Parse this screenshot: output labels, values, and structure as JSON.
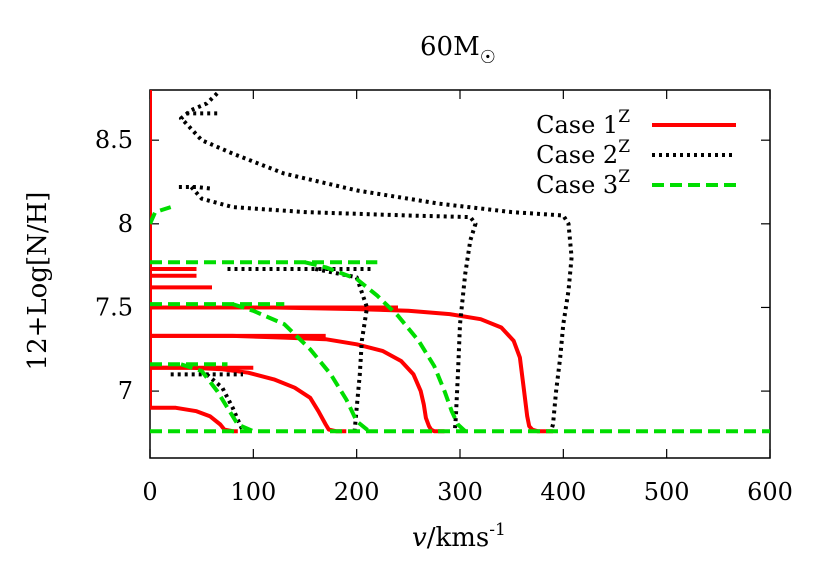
{
  "chart_data": {
    "type": "line",
    "title": "60M",
    "title_symbol": "☉",
    "xlabel": "v/kms",
    "xlabel_italic_part": "v",
    "xlabel_rest": "/kms",
    "xlabel_superscript": "-1",
    "ylabel": "12+Log[N/H]",
    "xlim": [
      0,
      600
    ],
    "ylim": [
      6.6,
      8.8
    ],
    "xticks": [
      0,
      100,
      200,
      300,
      400,
      500,
      600
    ],
    "yticks": [
      7,
      7.5,
      8,
      8.5
    ],
    "ytick_labels": [
      "7",
      "7.5",
      "8",
      "8.5"
    ],
    "legend_position": "top-right",
    "series": [
      {
        "name": "Case 1",
        "name_superscript": "Z",
        "color": "#ff0000",
        "dash": "solid",
        "segments": [
          [
            [
              0,
              8.8
            ],
            [
              0,
              6.9
            ]
          ],
          [
            [
              0,
              6.9
            ],
            [
              25,
              6.9
            ],
            [
              45,
              6.88
            ],
            [
              58,
              6.85
            ],
            [
              68,
              6.8
            ],
            [
              72,
              6.77
            ],
            [
              80,
              6.76
            ],
            [
              85,
              6.76
            ]
          ],
          [
            [
              0,
              7.14
            ],
            [
              100,
              7.14
            ]
          ],
          [
            [
              0,
              7.14
            ],
            [
              40,
              7.14
            ],
            [
              70,
              7.13
            ],
            [
              95,
              7.11
            ],
            [
              120,
              7.07
            ],
            [
              140,
              7.02
            ],
            [
              155,
              6.96
            ],
            [
              163,
              6.88
            ],
            [
              170,
              6.8
            ],
            [
              173,
              6.77
            ],
            [
              180,
              6.76
            ],
            [
              190,
              6.76
            ]
          ],
          [
            [
              0,
              7.33
            ],
            [
              170,
              7.33
            ]
          ],
          [
            [
              0,
              7.33
            ],
            [
              80,
              7.33
            ],
            [
              130,
              7.32
            ],
            [
              170,
              7.31
            ],
            [
              200,
              7.28
            ],
            [
              225,
              7.24
            ],
            [
              243,
              7.18
            ],
            [
              255,
              7.1
            ],
            [
              262,
              7.0
            ],
            [
              265,
              6.92
            ],
            [
              267,
              6.84
            ],
            [
              270,
              6.79
            ],
            [
              272,
              6.77
            ],
            [
              275,
              6.76
            ],
            [
              285,
              6.76
            ]
          ],
          [
            [
              0,
              7.5
            ],
            [
              240,
              7.5
            ]
          ],
          [
            [
              0,
              7.5
            ],
            [
              120,
              7.5
            ],
            [
              200,
              7.49
            ],
            [
              250,
              7.48
            ],
            [
              290,
              7.46
            ],
            [
              320,
              7.43
            ],
            [
              340,
              7.38
            ],
            [
              352,
              7.3
            ],
            [
              358,
              7.2
            ],
            [
              362,
              7.0
            ],
            [
              365,
              6.85
            ],
            [
              367,
              6.79
            ],
            [
              370,
              6.77
            ],
            [
              375,
              6.76
            ],
            [
              390,
              6.76
            ]
          ],
          [
            [
              0,
              7.62
            ],
            [
              60,
              7.62
            ]
          ],
          [
            [
              0,
              7.69
            ],
            [
              45,
              7.69
            ]
          ],
          [
            [
              0,
              7.73
            ],
            [
              45,
              7.73
            ]
          ]
        ]
      },
      {
        "name": "Case 2",
        "name_superscript": "Z",
        "color": "#000000",
        "dash": "dotted",
        "segments": [
          [
            [
              65,
              8.78
            ],
            [
              55,
              8.72
            ],
            [
              40,
              8.68
            ],
            [
              30,
              8.63
            ],
            [
              35,
              8.6
            ],
            [
              50,
              8.5
            ],
            [
              80,
              8.42
            ],
            [
              130,
              8.3
            ],
            [
              200,
              8.2
            ],
            [
              280,
              8.12
            ],
            [
              350,
              8.07
            ],
            [
              400,
              8.05
            ],
            [
              405,
              8.0
            ],
            [
              408,
              7.8
            ],
            [
              405,
              7.6
            ],
            [
              400,
              7.4
            ],
            [
              397,
              7.2
            ],
            [
              393,
              7.0
            ],
            [
              390,
              6.8
            ],
            [
              388,
              6.76
            ]
          ],
          [
            [
              35,
              8.66
            ],
            [
              65,
              8.66
            ]
          ],
          [
            [
              28,
              8.22
            ],
            [
              45,
              8.22
            ],
            [
              60,
              8.21
            ]
          ],
          [
            [
              40,
              8.22
            ],
            [
              50,
              8.15
            ],
            [
              80,
              8.1
            ],
            [
              150,
              8.07
            ],
            [
              250,
              8.05
            ],
            [
              310,
              8.04
            ],
            [
              315,
              8.0
            ],
            [
              310,
              7.9
            ],
            [
              305,
              7.7
            ],
            [
              300,
              7.4
            ],
            [
              298,
              7.1
            ],
            [
              296,
              6.85
            ],
            [
              295,
              6.76
            ]
          ],
          [
            [
              75,
              7.73
            ],
            [
              215,
              7.73
            ]
          ],
          [
            [
              160,
              7.73
            ],
            [
              200,
              7.68
            ],
            [
              210,
              7.5
            ],
            [
              205,
              7.3
            ],
            [
              203,
              7.1
            ],
            [
              200,
              6.9
            ],
            [
              198,
              6.76
            ]
          ],
          [
            [
              20,
              7.1
            ],
            [
              90,
              7.1
            ]
          ],
          [
            [
              55,
              7.1
            ],
            [
              70,
              7.02
            ],
            [
              80,
              6.9
            ],
            [
              87,
              6.8
            ],
            [
              90,
              6.76
            ]
          ]
        ]
      },
      {
        "name": "Case 3",
        "name_superscript": "Z",
        "color": "#00dd00",
        "dash": "dashed",
        "segments": [
          [
            [
              0,
              7.77
            ],
            [
              220,
              7.77
            ]
          ],
          [
            [
              0,
              7.52
            ],
            [
              130,
              7.52
            ]
          ],
          [
            [
              0,
              7.16
            ],
            [
              75,
              7.16
            ]
          ],
          [
            [
              0,
              6.76
            ],
            [
              600,
              6.76
            ]
          ],
          [
            [
              0,
              8.0
            ],
            [
              5,
              8.07
            ],
            [
              20,
              8.1
            ]
          ],
          [
            [
              30,
              7.16
            ],
            [
              50,
              7.12
            ],
            [
              65,
              7.0
            ],
            [
              75,
              6.9
            ],
            [
              85,
              6.8
            ],
            [
              100,
              6.76
            ]
          ],
          [
            [
              80,
              7.52
            ],
            [
              100,
              7.48
            ],
            [
              130,
              7.4
            ],
            [
              155,
              7.25
            ],
            [
              175,
              7.1
            ],
            [
              190,
              6.95
            ],
            [
              200,
              6.82
            ],
            [
              210,
              6.77
            ],
            [
              215,
              6.76
            ]
          ],
          [
            [
              150,
              7.77
            ],
            [
              170,
              7.74
            ],
            [
              200,
              7.67
            ],
            [
              220,
              7.57
            ],
            [
              240,
              7.45
            ],
            [
              260,
              7.3
            ],
            [
              275,
              7.15
            ],
            [
              285,
              7.0
            ],
            [
              292,
              6.88
            ],
            [
              298,
              6.8
            ],
            [
              305,
              6.76
            ]
          ]
        ]
      }
    ]
  }
}
